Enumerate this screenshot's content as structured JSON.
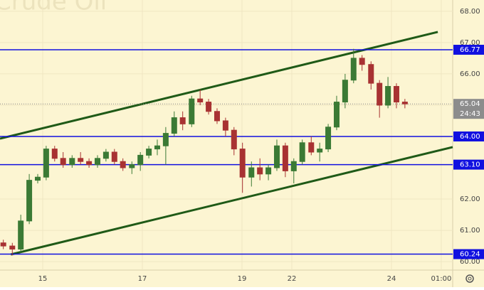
{
  "chart_data": {
    "type": "candlestick",
    "watermark": "Crude Oil",
    "x": [
      -0.79,
      -0.61,
      -0.44,
      -0.27,
      -0.1,
      0.07,
      0.24,
      0.41,
      0.59,
      0.76,
      0.93,
      1.1,
      1.27,
      1.44,
      1.61,
      1.79,
      1.96,
      2.13,
      2.3,
      2.47,
      2.64,
      2.81,
      2.99,
      3.16,
      3.33,
      3.5,
      3.67,
      3.84,
      4.01,
      4.19,
      4.36,
      4.53,
      4.7,
      4.87,
      5.04,
      5.21,
      5.39,
      5.56,
      5.73,
      5.9,
      6.07,
      6.24,
      6.41,
      6.59,
      6.76,
      6.93,
      7.1,
      7.27
    ],
    "open": [
      60.6,
      60.5,
      60.4,
      61.3,
      62.6,
      62.7,
      63.6,
      63.3,
      63.1,
      63.3,
      63.2,
      63.1,
      63.3,
      63.5,
      63.2,
      63.0,
      63.1,
      63.4,
      63.6,
      63.7,
      64.1,
      64.6,
      64.4,
      65.2,
      65.1,
      64.8,
      64.5,
      64.2,
      63.6,
      62.7,
      63.0,
      62.8,
      63.0,
      63.7,
      62.9,
      63.2,
      63.8,
      63.5,
      63.6,
      64.3,
      65.1,
      65.8,
      66.5,
      66.3,
      65.7,
      65.0,
      65.6,
      65.1
    ],
    "high": [
      60.7,
      60.6,
      61.5,
      62.8,
      62.8,
      63.7,
      63.7,
      63.5,
      63.4,
      63.5,
      63.3,
      63.4,
      63.6,
      63.6,
      63.3,
      63.2,
      63.5,
      63.7,
      63.9,
      64.3,
      64.8,
      64.8,
      65.3,
      65.5,
      65.2,
      64.9,
      64.6,
      64.3,
      63.8,
      63.2,
      63.3,
      63.1,
      63.9,
      63.8,
      63.3,
      63.9,
      64.0,
      63.8,
      64.4,
      65.3,
      66.0,
      66.8,
      66.6,
      66.4,
      65.8,
      65.9,
      65.7,
      65.2
    ],
    "low": [
      60.4,
      60.2,
      60.3,
      61.2,
      62.5,
      62.6,
      63.2,
      63.0,
      63.0,
      63.1,
      63.0,
      63.0,
      63.2,
      63.1,
      62.9,
      62.8,
      62.9,
      63.3,
      63.4,
      63.1,
      64.0,
      64.2,
      64.3,
      65.0,
      64.7,
      64.4,
      64.0,
      63.4,
      62.2,
      62.4,
      62.6,
      62.6,
      62.9,
      62.7,
      62.5,
      63.1,
      63.4,
      63.2,
      63.5,
      64.2,
      64.9,
      65.7,
      66.1,
      65.5,
      64.6,
      64.9,
      64.9,
      64.9
    ],
    "close": [
      60.5,
      60.4,
      61.3,
      62.6,
      62.7,
      63.6,
      63.3,
      63.1,
      63.3,
      63.2,
      63.1,
      63.3,
      63.5,
      63.2,
      63.0,
      63.1,
      63.4,
      63.6,
      63.7,
      64.1,
      64.6,
      64.4,
      65.2,
      65.1,
      64.8,
      64.5,
      64.2,
      63.6,
      62.7,
      63.0,
      62.8,
      63.0,
      63.7,
      62.9,
      63.2,
      63.8,
      63.5,
      63.6,
      64.3,
      65.1,
      65.8,
      66.5,
      66.3,
      65.7,
      65.0,
      65.6,
      65.1,
      65.04
    ],
    "up_color": "#3b7a35",
    "down_color": "#a83232",
    "xlim": [
      -0.857,
      8.229
    ],
    "xticks": [
      {
        "value": 0,
        "label": "15"
      },
      {
        "value": 2,
        "label": "17"
      },
      {
        "value": 4,
        "label": "19"
      },
      {
        "value": 5,
        "label": "22"
      },
      {
        "value": 7,
        "label": "24"
      },
      {
        "value": 8,
        "label": "01:00"
      }
    ],
    "ylim": [
      59.73,
      68.36
    ],
    "yticks": [
      {
        "value": 60,
        "label": "60.00"
      },
      {
        "value": 61,
        "label": "61.00"
      },
      {
        "value": 62,
        "label": "62.00"
      },
      {
        "value": 65,
        "label": "65.00"
      },
      {
        "value": 66,
        "label": "66.00"
      },
      {
        "value": 67,
        "label": "67.00"
      },
      {
        "value": 68,
        "label": "68.00"
      }
    ],
    "grid": true,
    "levels": [
      {
        "value": 66.77,
        "label": "66.77"
      },
      {
        "value": 64,
        "label": "64.00"
      },
      {
        "value": 63.1,
        "label": "63.10"
      },
      {
        "value": 60.24,
        "label": "60.24"
      }
    ],
    "level_color": "#1010e0",
    "channel": [
      {
        "x": [
          -0.857,
          7.93
        ],
        "y": [
          63.93,
          67.34
        ]
      },
      {
        "x": [
          -0.64,
          8.229
        ],
        "y": [
          60.23,
          63.66
        ]
      }
    ],
    "channel_color": "#1f5a17",
    "last_price": 65.04,
    "countdown": "24:43"
  }
}
